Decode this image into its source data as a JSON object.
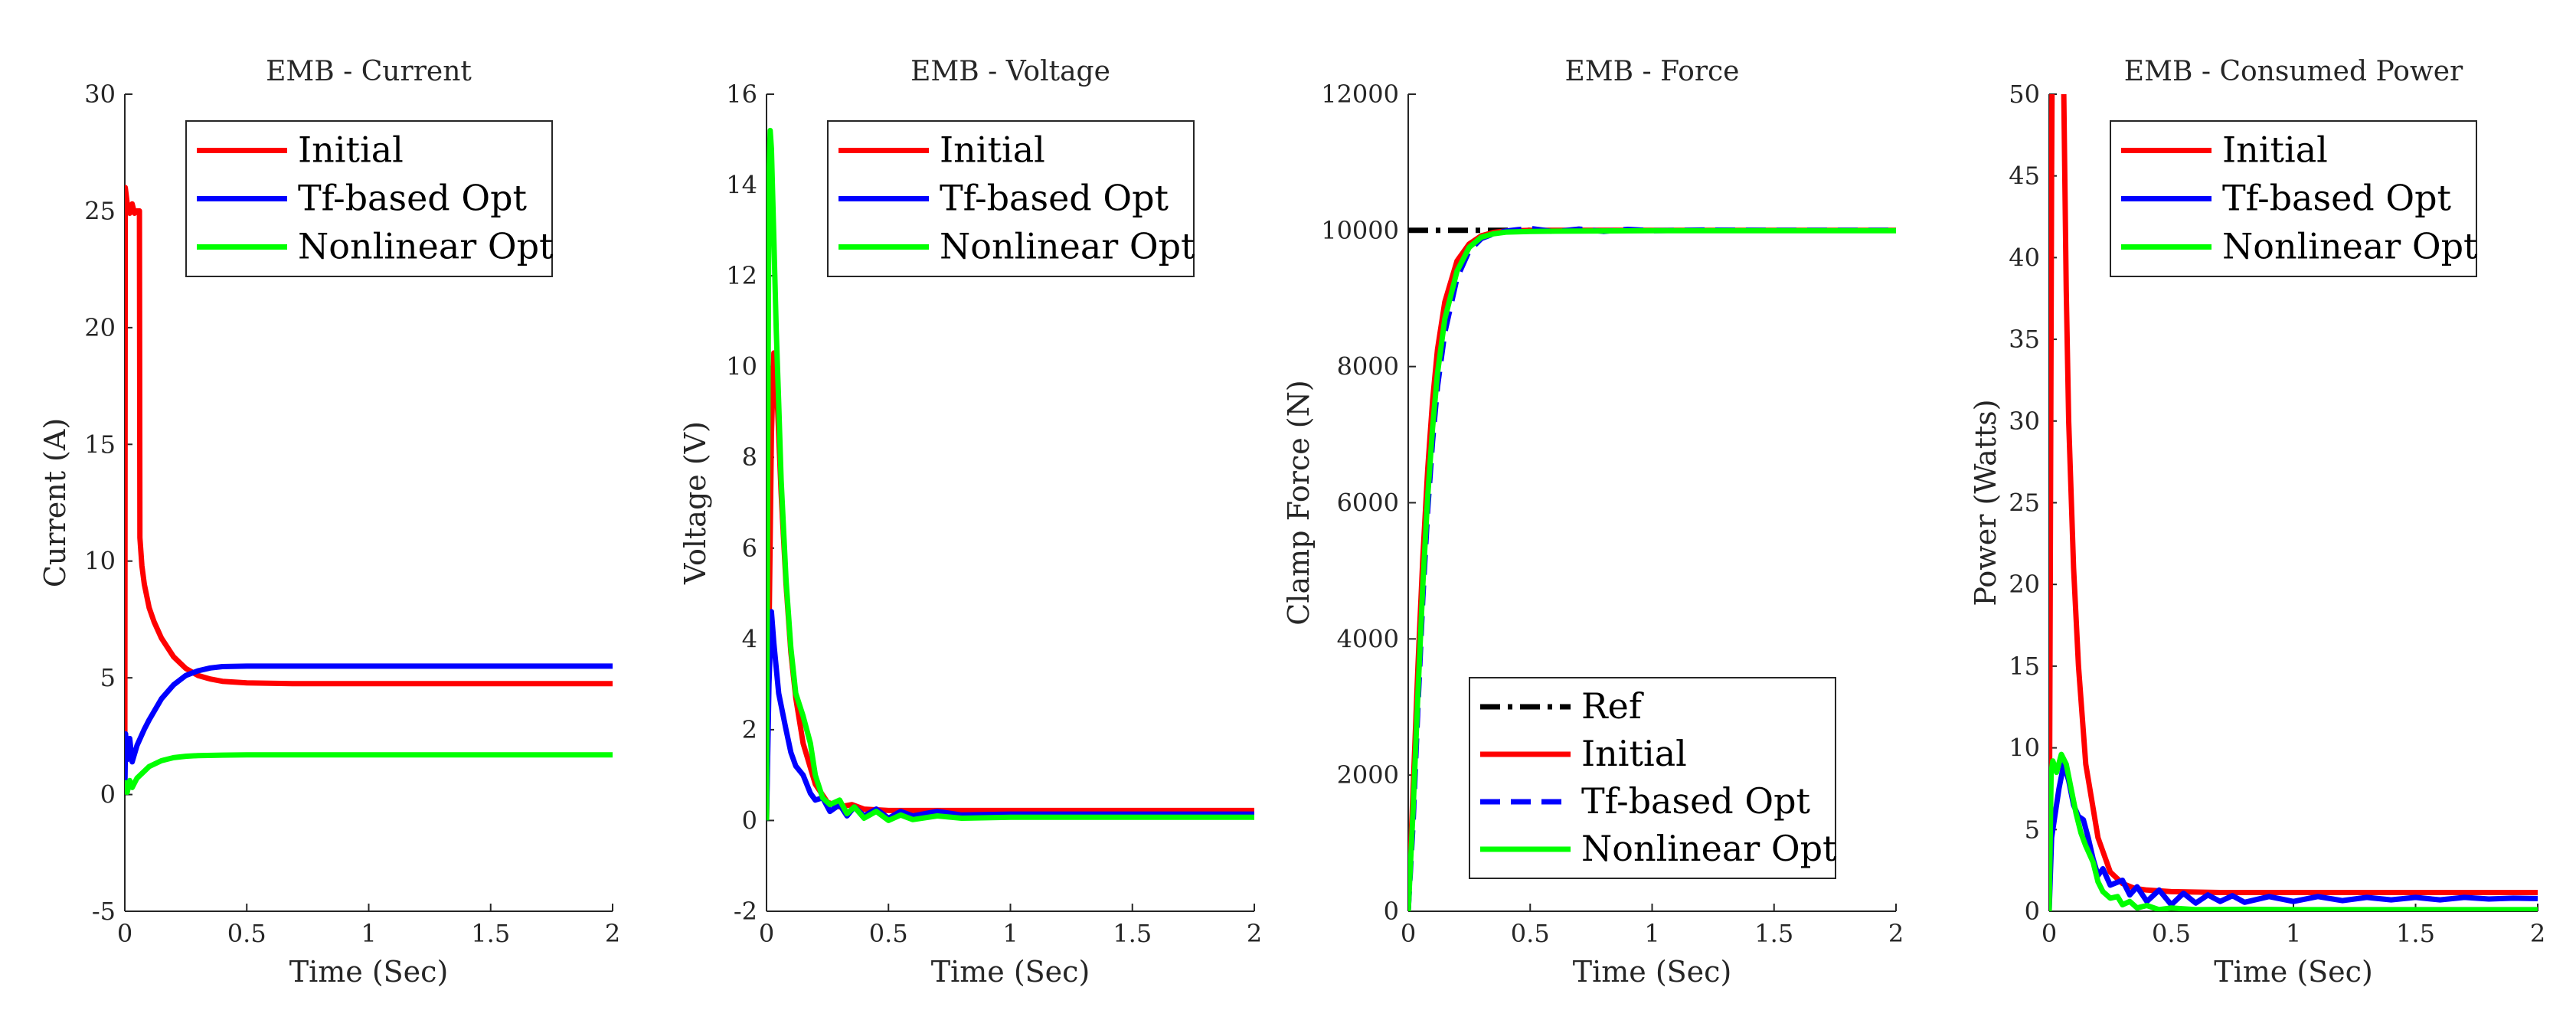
{
  "colors": {
    "initial": "#ff0000",
    "tf": "#0000ff",
    "nonlinear": "#00ff00",
    "ref": "#000000",
    "axis": "#262626"
  },
  "chart_data": [
    {
      "id": "current",
      "type": "line",
      "title": "EMB - Current",
      "xlabel": "Time (Sec)",
      "ylabel": "Current (A)",
      "xlim": [
        0,
        2
      ],
      "ylim": [
        -5,
        30
      ],
      "xticks": [
        0,
        0.5,
        1,
        1.5,
        2
      ],
      "xtick_labels": [
        "0",
        "0.5",
        "1",
        "1.5",
        "2"
      ],
      "yticks": [
        -5,
        0,
        5,
        10,
        15,
        20,
        25,
        30
      ],
      "ytick_labels": [
        "-5",
        "0",
        "5",
        "10",
        "15",
        "20",
        "25",
        "30"
      ],
      "legend": {
        "position": "top-right",
        "entries": [
          "Initial",
          "Tf-based Opt",
          "Nonlinear Opt"
        ]
      },
      "series": [
        {
          "name": "Initial",
          "color": "#ff0000",
          "dash": "solid",
          "x": [
            0,
            0.002,
            0.01,
            0.02,
            0.03,
            0.04,
            0.05,
            0.055,
            0.06,
            0.062,
            0.07,
            0.08,
            0.1,
            0.12,
            0.15,
            0.2,
            0.25,
            0.3,
            0.35,
            0.4,
            0.5,
            0.7,
            1.0,
            1.5,
            2.0
          ],
          "y": [
            0,
            26,
            25.3,
            24.9,
            25.3,
            24.9,
            25.0,
            25.0,
            25.0,
            11.0,
            9.8,
            9.0,
            8.0,
            7.4,
            6.7,
            5.9,
            5.4,
            5.1,
            4.95,
            4.85,
            4.78,
            4.75,
            4.75,
            4.75,
            4.75
          ]
        },
        {
          "name": "Tf-based Opt",
          "color": "#0000ff",
          "dash": "solid",
          "x": [
            0,
            0.003,
            0.01,
            0.02,
            0.03,
            0.05,
            0.08,
            0.1,
            0.15,
            0.2,
            0.25,
            0.3,
            0.35,
            0.4,
            0.5,
            0.7,
            1.0,
            1.5,
            2.0
          ],
          "y": [
            0,
            2.6,
            1.5,
            2.4,
            1.4,
            2.1,
            2.8,
            3.2,
            4.1,
            4.7,
            5.1,
            5.3,
            5.42,
            5.48,
            5.5,
            5.5,
            5.5,
            5.5,
            5.5
          ]
        },
        {
          "name": "Nonlinear Opt",
          "color": "#00ff00",
          "dash": "solid",
          "x": [
            0,
            0.003,
            0.01,
            0.02,
            0.03,
            0.05,
            0.08,
            0.1,
            0.15,
            0.2,
            0.25,
            0.3,
            0.4,
            0.5,
            0.7,
            1.0,
            1.5,
            2.0
          ],
          "y": [
            0,
            0.5,
            0.1,
            0.6,
            0.3,
            0.7,
            1.0,
            1.2,
            1.45,
            1.58,
            1.64,
            1.67,
            1.69,
            1.7,
            1.7,
            1.7,
            1.7,
            1.7
          ]
        }
      ]
    },
    {
      "id": "voltage",
      "type": "line",
      "title": "EMB - Voltage",
      "xlabel": "Time (Sec)",
      "ylabel": "Voltage (V)",
      "xlim": [
        0,
        2
      ],
      "ylim": [
        -2,
        16
      ],
      "xticks": [
        0,
        0.5,
        1,
        1.5,
        2
      ],
      "xtick_labels": [
        "0",
        "0.5",
        "1",
        "1.5",
        "2"
      ],
      "yticks": [
        -2,
        0,
        2,
        4,
        6,
        8,
        10,
        12,
        14,
        16
      ],
      "ytick_labels": [
        "-2",
        "0",
        "2",
        "4",
        "6",
        "8",
        "10",
        "12",
        "14",
        "16"
      ],
      "legend": {
        "position": "top-right",
        "entries": [
          "Initial",
          "Tf-based Opt",
          "Nonlinear Opt"
        ]
      },
      "series": [
        {
          "name": "Initial",
          "color": "#ff0000",
          "dash": "solid",
          "x": [
            0,
            0.01,
            0.02,
            0.03,
            0.04,
            0.05,
            0.06,
            0.08,
            0.1,
            0.12,
            0.15,
            0.2,
            0.25,
            0.3,
            0.35,
            0.4,
            0.5,
            0.7,
            1.0,
            1.5,
            2.0
          ],
          "y": [
            0,
            4.0,
            8.5,
            10.3,
            9.8,
            8.5,
            7.2,
            5.2,
            3.7,
            2.7,
            1.7,
            0.8,
            0.4,
            0.3,
            0.35,
            0.25,
            0.22,
            0.22,
            0.22,
            0.22,
            0.22
          ]
        },
        {
          "name": "Tf-based Opt",
          "color": "#0000ff",
          "dash": "solid",
          "x": [
            0,
            0.01,
            0.02,
            0.03,
            0.05,
            0.08,
            0.1,
            0.12,
            0.15,
            0.18,
            0.2,
            0.23,
            0.26,
            0.3,
            0.33,
            0.36,
            0.4,
            0.45,
            0.5,
            0.55,
            0.6,
            0.7,
            0.8,
            1.0,
            1.5,
            2.0
          ],
          "y": [
            0,
            3.0,
            4.6,
            3.9,
            2.8,
            2.0,
            1.5,
            1.2,
            1.0,
            0.6,
            0.45,
            0.5,
            0.2,
            0.35,
            0.1,
            0.3,
            0.1,
            0.25,
            0.05,
            0.2,
            0.1,
            0.2,
            0.12,
            0.14,
            0.14,
            0.14
          ]
        },
        {
          "name": "Nonlinear Opt",
          "color": "#00ff00",
          "dash": "solid",
          "x": [
            0,
            0.005,
            0.01,
            0.015,
            0.02,
            0.03,
            0.04,
            0.05,
            0.06,
            0.08,
            0.1,
            0.12,
            0.15,
            0.18,
            0.2,
            0.23,
            0.26,
            0.3,
            0.33,
            0.36,
            0.4,
            0.45,
            0.5,
            0.55,
            0.6,
            0.7,
            0.8,
            1.0,
            1.5,
            2.0
          ],
          "y": [
            0,
            8.0,
            14.2,
            15.2,
            14.8,
            12.8,
            10.8,
            9.2,
            7.5,
            5.3,
            3.8,
            2.8,
            2.3,
            1.7,
            1.0,
            0.5,
            0.35,
            0.45,
            0.15,
            0.3,
            0.05,
            0.2,
            0.0,
            0.12,
            0.02,
            0.1,
            0.05,
            0.07,
            0.07,
            0.07
          ]
        }
      ]
    },
    {
      "id": "force",
      "type": "line",
      "title": "EMB - Force",
      "xlabel": "Time (Sec)",
      "ylabel": "Clamp Force (N)",
      "xlim": [
        0,
        2
      ],
      "ylim": [
        0,
        12000
      ],
      "xticks": [
        0,
        0.5,
        1,
        1.5,
        2
      ],
      "xtick_labels": [
        "0",
        "0.5",
        "1",
        "1.5",
        "2"
      ],
      "yticks": [
        0,
        2000,
        4000,
        6000,
        8000,
        10000,
        12000
      ],
      "ytick_labels": [
        "0",
        "2000",
        "4000",
        "6000",
        "8000",
        "10000",
        "12000"
      ],
      "legend": {
        "position": "bottom-right",
        "entries": [
          "Ref",
          "Initial",
          "Tf-based Opt",
          "Nonlinear Opt"
        ]
      },
      "series": [
        {
          "name": "Ref",
          "color": "#000000",
          "dash": "dashdot",
          "x": [
            0,
            0.5
          ],
          "y": [
            10000,
            10000
          ]
        },
        {
          "name": "Initial",
          "color": "#ff0000",
          "dash": "solid",
          "x": [
            0,
            0.02,
            0.04,
            0.06,
            0.08,
            0.1,
            0.12,
            0.15,
            0.2,
            0.25,
            0.3,
            0.35,
            0.4,
            0.5,
            0.7,
            1.0,
            1.5,
            2.0
          ],
          "y": [
            0,
            1800,
            3600,
            5200,
            6500,
            7500,
            8250,
            8950,
            9550,
            9800,
            9920,
            9970,
            9990,
            10000,
            10000,
            10000,
            10000,
            10000
          ]
        },
        {
          "name": "Tf-based Opt",
          "color": "#0000ff",
          "dash": "dashed",
          "x": [
            0,
            0.02,
            0.04,
            0.06,
            0.08,
            0.1,
            0.12,
            0.15,
            0.2,
            0.25,
            0.3,
            0.35,
            0.4,
            0.45,
            0.5,
            0.6,
            0.7,
            0.8,
            0.9,
            1.0,
            1.2,
            1.5,
            2.0
          ],
          "y": [
            0,
            1300,
            3000,
            4600,
            5900,
            6900,
            7700,
            8500,
            9300,
            9700,
            9880,
            9950,
            9990,
            10010,
            10030,
            9980,
            10020,
            9985,
            10015,
            9995,
            10005,
            10000,
            10000
          ]
        },
        {
          "name": "Nonlinear Opt",
          "color": "#00ff00",
          "dash": "solid",
          "x": [
            0,
            0.02,
            0.04,
            0.06,
            0.08,
            0.1,
            0.12,
            0.15,
            0.2,
            0.25,
            0.3,
            0.35,
            0.4,
            0.5,
            0.7,
            1.0,
            1.5,
            2.0
          ],
          "y": [
            0,
            1500,
            3200,
            4800,
            6100,
            7100,
            7900,
            8700,
            9400,
            9750,
            9900,
            9950,
            9975,
            9985,
            9990,
            9995,
            9995,
            9995
          ]
        }
      ]
    },
    {
      "id": "power",
      "type": "line",
      "title": "EMB - Consumed Power",
      "xlabel": "Time (Sec)",
      "ylabel": "Power (Watts)",
      "xlim": [
        0,
        2
      ],
      "ylim": [
        0,
        50
      ],
      "xticks": [
        0,
        0.5,
        1,
        1.5,
        2
      ],
      "xtick_labels": [
        "0",
        "0.5",
        "1",
        "1.5",
        "2"
      ],
      "yticks": [
        0,
        5,
        10,
        15,
        20,
        25,
        30,
        35,
        40,
        45,
        50
      ],
      "ytick_labels": [
        "0",
        "5",
        "10",
        "15",
        "20",
        "25",
        "30",
        "35",
        "40",
        "45",
        "50"
      ],
      "legend": {
        "position": "top-right",
        "entries": [
          "Initial",
          "Tf-based Opt",
          "Nonlinear Opt"
        ]
      },
      "series": [
        {
          "name": "Initial",
          "color": "#ff0000",
          "dash": "solid",
          "x": [
            0,
            0.01,
            0.015,
            0.05,
            0.06,
            0.07,
            0.08,
            0.1,
            0.12,
            0.15,
            0.2,
            0.25,
            0.3,
            0.35,
            0.4,
            0.5,
            0.7,
            1.0,
            1.5,
            2.0
          ],
          "y": [
            0,
            45,
            60,
            60,
            50,
            38,
            30,
            21,
            15,
            9,
            4.5,
            2.4,
            1.7,
            1.4,
            1.3,
            1.2,
            1.15,
            1.15,
            1.15,
            1.15
          ]
        },
        {
          "name": "Tf-based Opt",
          "color": "#0000ff",
          "dash": "solid",
          "x": [
            0,
            0.01,
            0.02,
            0.04,
            0.06,
            0.08,
            0.1,
            0.12,
            0.14,
            0.16,
            0.18,
            0.2,
            0.22,
            0.25,
            0.3,
            0.33,
            0.36,
            0.4,
            0.45,
            0.5,
            0.55,
            0.6,
            0.65,
            0.7,
            0.75,
            0.8,
            0.9,
            1.0,
            1.1,
            1.2,
            1.3,
            1.4,
            1.5,
            1.6,
            1.7,
            1.8,
            1.9,
            2.0
          ],
          "y": [
            0,
            4.5,
            5.5,
            7.5,
            9.0,
            8.0,
            6.5,
            5.8,
            5.6,
            4.5,
            3.2,
            2.2,
            2.6,
            1.6,
            1.9,
            1.0,
            1.5,
            0.6,
            1.3,
            0.4,
            1.1,
            0.5,
            1.0,
            0.6,
            0.95,
            0.55,
            0.9,
            0.6,
            0.9,
            0.65,
            0.85,
            0.7,
            0.85,
            0.7,
            0.85,
            0.75,
            0.8,
            0.78
          ]
        },
        {
          "name": "Nonlinear Opt",
          "color": "#00ff00",
          "dash": "solid",
          "x": [
            0,
            0.008,
            0.015,
            0.03,
            0.05,
            0.07,
            0.09,
            0.11,
            0.13,
            0.15,
            0.18,
            0.2,
            0.22,
            0.25,
            0.28,
            0.3,
            0.33,
            0.36,
            0.4,
            0.45,
            0.5,
            0.6,
            0.8,
            1.0,
            1.5,
            2.0
          ],
          "y": [
            0,
            8.5,
            9.2,
            8.5,
            9.6,
            9.0,
            7.5,
            6.0,
            4.8,
            4.0,
            3.0,
            1.8,
            1.2,
            0.8,
            0.9,
            0.4,
            0.6,
            0.2,
            0.35,
            0.1,
            0.2,
            0.1,
            0.12,
            0.1,
            0.1,
            0.1
          ]
        }
      ]
    }
  ]
}
